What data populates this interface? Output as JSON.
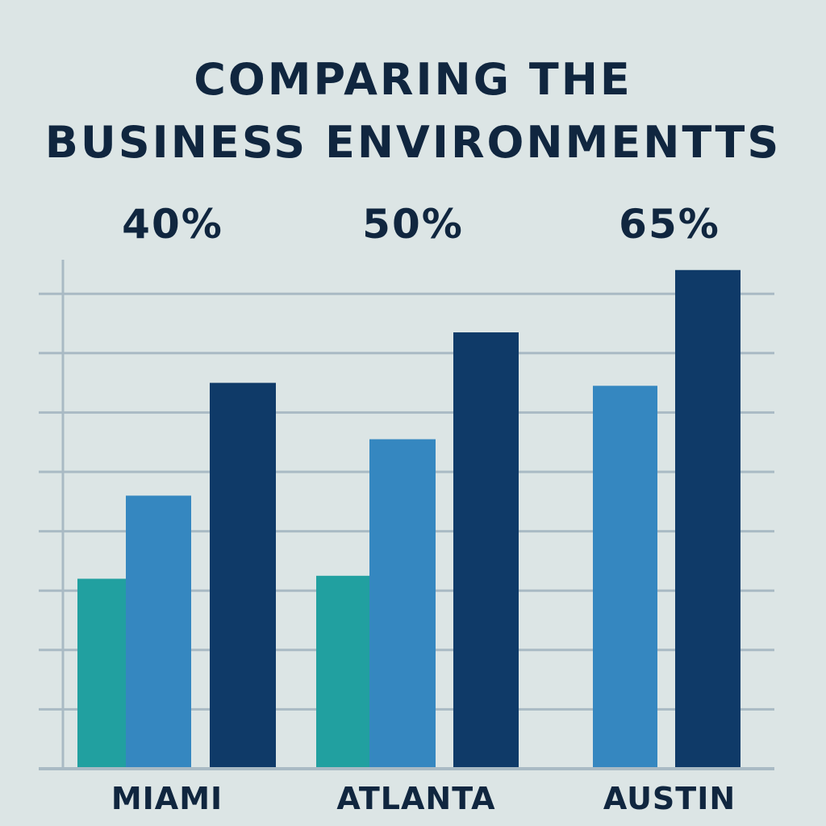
{
  "chart_data": {
    "type": "bar",
    "title": [
      "COMPARING THE",
      "BUSINESS ENVIRONMENTT S"
    ],
    "categories": [
      "MIAMI",
      "ATLANTA",
      "AUSTIN"
    ],
    "annotations": [
      "40%",
      "50%",
      "65%"
    ],
    "series": [
      {
        "values": [
          3.2,
          3.25,
          null
        ],
        "color": "#21a0a0"
      },
      {
        "values": [
          4.6,
          5.55,
          6.45
        ],
        "color": "#3587c0"
      },
      {
        "values": [
          6.5,
          7.35,
          8.4
        ],
        "color": "#0f3a68"
      }
    ],
    "xlabel": "",
    "ylabel": "",
    "ylim": [
      0,
      8.5
    ],
    "grid": true,
    "legend": "none"
  }
}
